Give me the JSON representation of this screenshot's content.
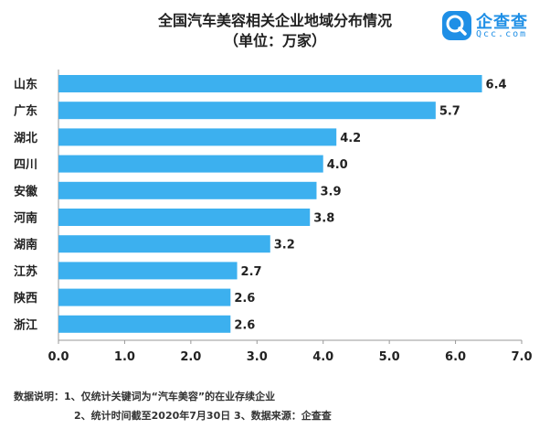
{
  "title": "全国汽车美容相关企业地域分布情况",
  "subtitle": "（单位：万家）",
  "logo": {
    "icon": "qcc-logo-icon",
    "text": "企查查",
    "subtext": "Qcc.com"
  },
  "colors": {
    "bar": "#3cb0ef",
    "axis": "#999999",
    "text": "#222222",
    "logo": "#1f8fe6"
  },
  "notes": {
    "line1": "数据说明：1、仅统计关键词为“汽车美容”的在业存续企业",
    "line2": "2、统计时间截至2020年7月30日 3、数据来源：企查查"
  },
  "chart_data": {
    "type": "bar",
    "orientation": "horizontal",
    "categories": [
      "山东",
      "广东",
      "湖北",
      "四川",
      "安徽",
      "河南",
      "湖南",
      "江苏",
      "陕西",
      "浙江"
    ],
    "values": [
      6.4,
      5.7,
      4.2,
      4.0,
      3.9,
      3.8,
      3.2,
      2.7,
      2.6,
      2.6
    ],
    "value_labels": [
      "6.4",
      "5.7",
      "4.2",
      "4.0",
      "3.9",
      "3.8",
      "3.2",
      "2.7",
      "2.6",
      "2.6"
    ],
    "xlim": [
      0,
      7
    ],
    "ticks": [
      "0.0",
      "1.0",
      "2.0",
      "3.0",
      "4.0",
      "5.0",
      "6.0",
      "7.0"
    ],
    "grid": false,
    "legend": "none"
  }
}
